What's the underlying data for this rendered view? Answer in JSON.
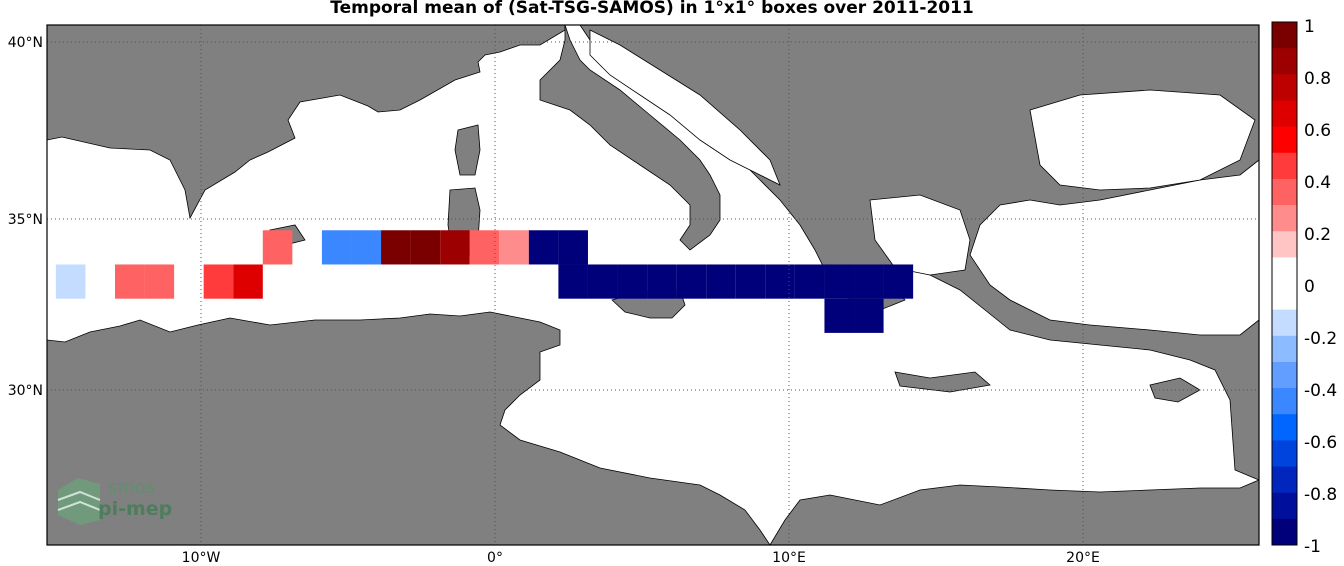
{
  "title": "Temporal mean of (Sat-TSG-SAMOS) in 1°x1° boxes over 2011-2011",
  "axes": {
    "x_ticks": [
      "10°W",
      "0°",
      "10°E",
      "20°E"
    ],
    "y_ticks": [
      "40°N",
      "35°N",
      "30°N"
    ]
  },
  "colorbar": {
    "ticks": [
      "1",
      "0.8",
      "0.6",
      "0.4",
      "0.2",
      "0",
      "-0.2",
      "-0.4",
      "-0.6",
      "-0.8",
      "-1"
    ],
    "colors": [
      "#7a0000",
      "#9c0000",
      "#bd0000",
      "#de0000",
      "#ff0000",
      "#ff3b3b",
      "#ff6262",
      "#ff8c8c",
      "#ffc4c4",
      "#ffffff",
      "#ffffff",
      "#c4dcff",
      "#8cbcff",
      "#629eff",
      "#3b87ff",
      "#0066ff",
      "#0044de",
      "#0026bd",
      "#00109c",
      "#00007a"
    ]
  },
  "chart_data": {
    "type": "heatmap",
    "title": "Temporal mean of (Sat-TSG-SAMOS) in 1°x1° boxes over 2011-2011",
    "x_unit": "degrees longitude",
    "y_unit": "degrees latitude",
    "xlim": [
      -15.3,
      25.7
    ],
    "ylim": [
      25.8,
      41.0
    ],
    "clim": [
      -1,
      1
    ],
    "colormap": "blue-white-red",
    "cells": [
      {
        "lon": -14.5,
        "lat": 33.5,
        "value": -0.15
      },
      {
        "lon": -12.5,
        "lat": 33.5,
        "value": 0.35
      },
      {
        "lon": -11.5,
        "lat": 33.5,
        "value": 0.4
      },
      {
        "lon": -9.5,
        "lat": 33.5,
        "value": 0.45
      },
      {
        "lon": -8.5,
        "lat": 33.5,
        "value": 0.7
      },
      {
        "lon": -7.5,
        "lat": 34.5,
        "value": 0.35
      },
      {
        "lon": -5.5,
        "lat": 34.5,
        "value": -0.45
      },
      {
        "lon": -4.5,
        "lat": 34.5,
        "value": -0.45
      },
      {
        "lon": -3.5,
        "lat": 34.5,
        "value": 0.95
      },
      {
        "lon": -2.5,
        "lat": 34.5,
        "value": 0.95
      },
      {
        "lon": -1.5,
        "lat": 34.5,
        "value": 0.8
      },
      {
        "lon": -0.5,
        "lat": 34.5,
        "value": 0.35
      },
      {
        "lon": 0.5,
        "lat": 34.5,
        "value": 0.25
      },
      {
        "lon": 1.5,
        "lat": 34.5,
        "value": -1
      },
      {
        "lon": 2.5,
        "lat": 34.5,
        "value": -1
      },
      {
        "lon": 2.5,
        "lat": 33.5,
        "value": -1
      },
      {
        "lon": 3.5,
        "lat": 33.5,
        "value": -1
      },
      {
        "lon": 4.5,
        "lat": 33.5,
        "value": -1
      },
      {
        "lon": 5.5,
        "lat": 33.5,
        "value": -1
      },
      {
        "lon": 6.5,
        "lat": 33.5,
        "value": -1
      },
      {
        "lon": 7.5,
        "lat": 33.5,
        "value": -1
      },
      {
        "lon": 8.5,
        "lat": 33.5,
        "value": -1
      },
      {
        "lon": 9.5,
        "lat": 33.5,
        "value": -1
      },
      {
        "lon": 10.5,
        "lat": 33.5,
        "value": -1
      },
      {
        "lon": 11.5,
        "lat": 33.5,
        "value": -1
      },
      {
        "lon": 12.5,
        "lat": 33.5,
        "value": -1
      },
      {
        "lon": 13.5,
        "lat": 33.5,
        "value": -1
      },
      {
        "lon": 11.5,
        "lat": 32.5,
        "value": -1
      },
      {
        "lon": 12.5,
        "lat": 32.5,
        "value": -1
      }
    ]
  },
  "logo": {
    "line1": "smos",
    "line2": "pi-mep"
  }
}
